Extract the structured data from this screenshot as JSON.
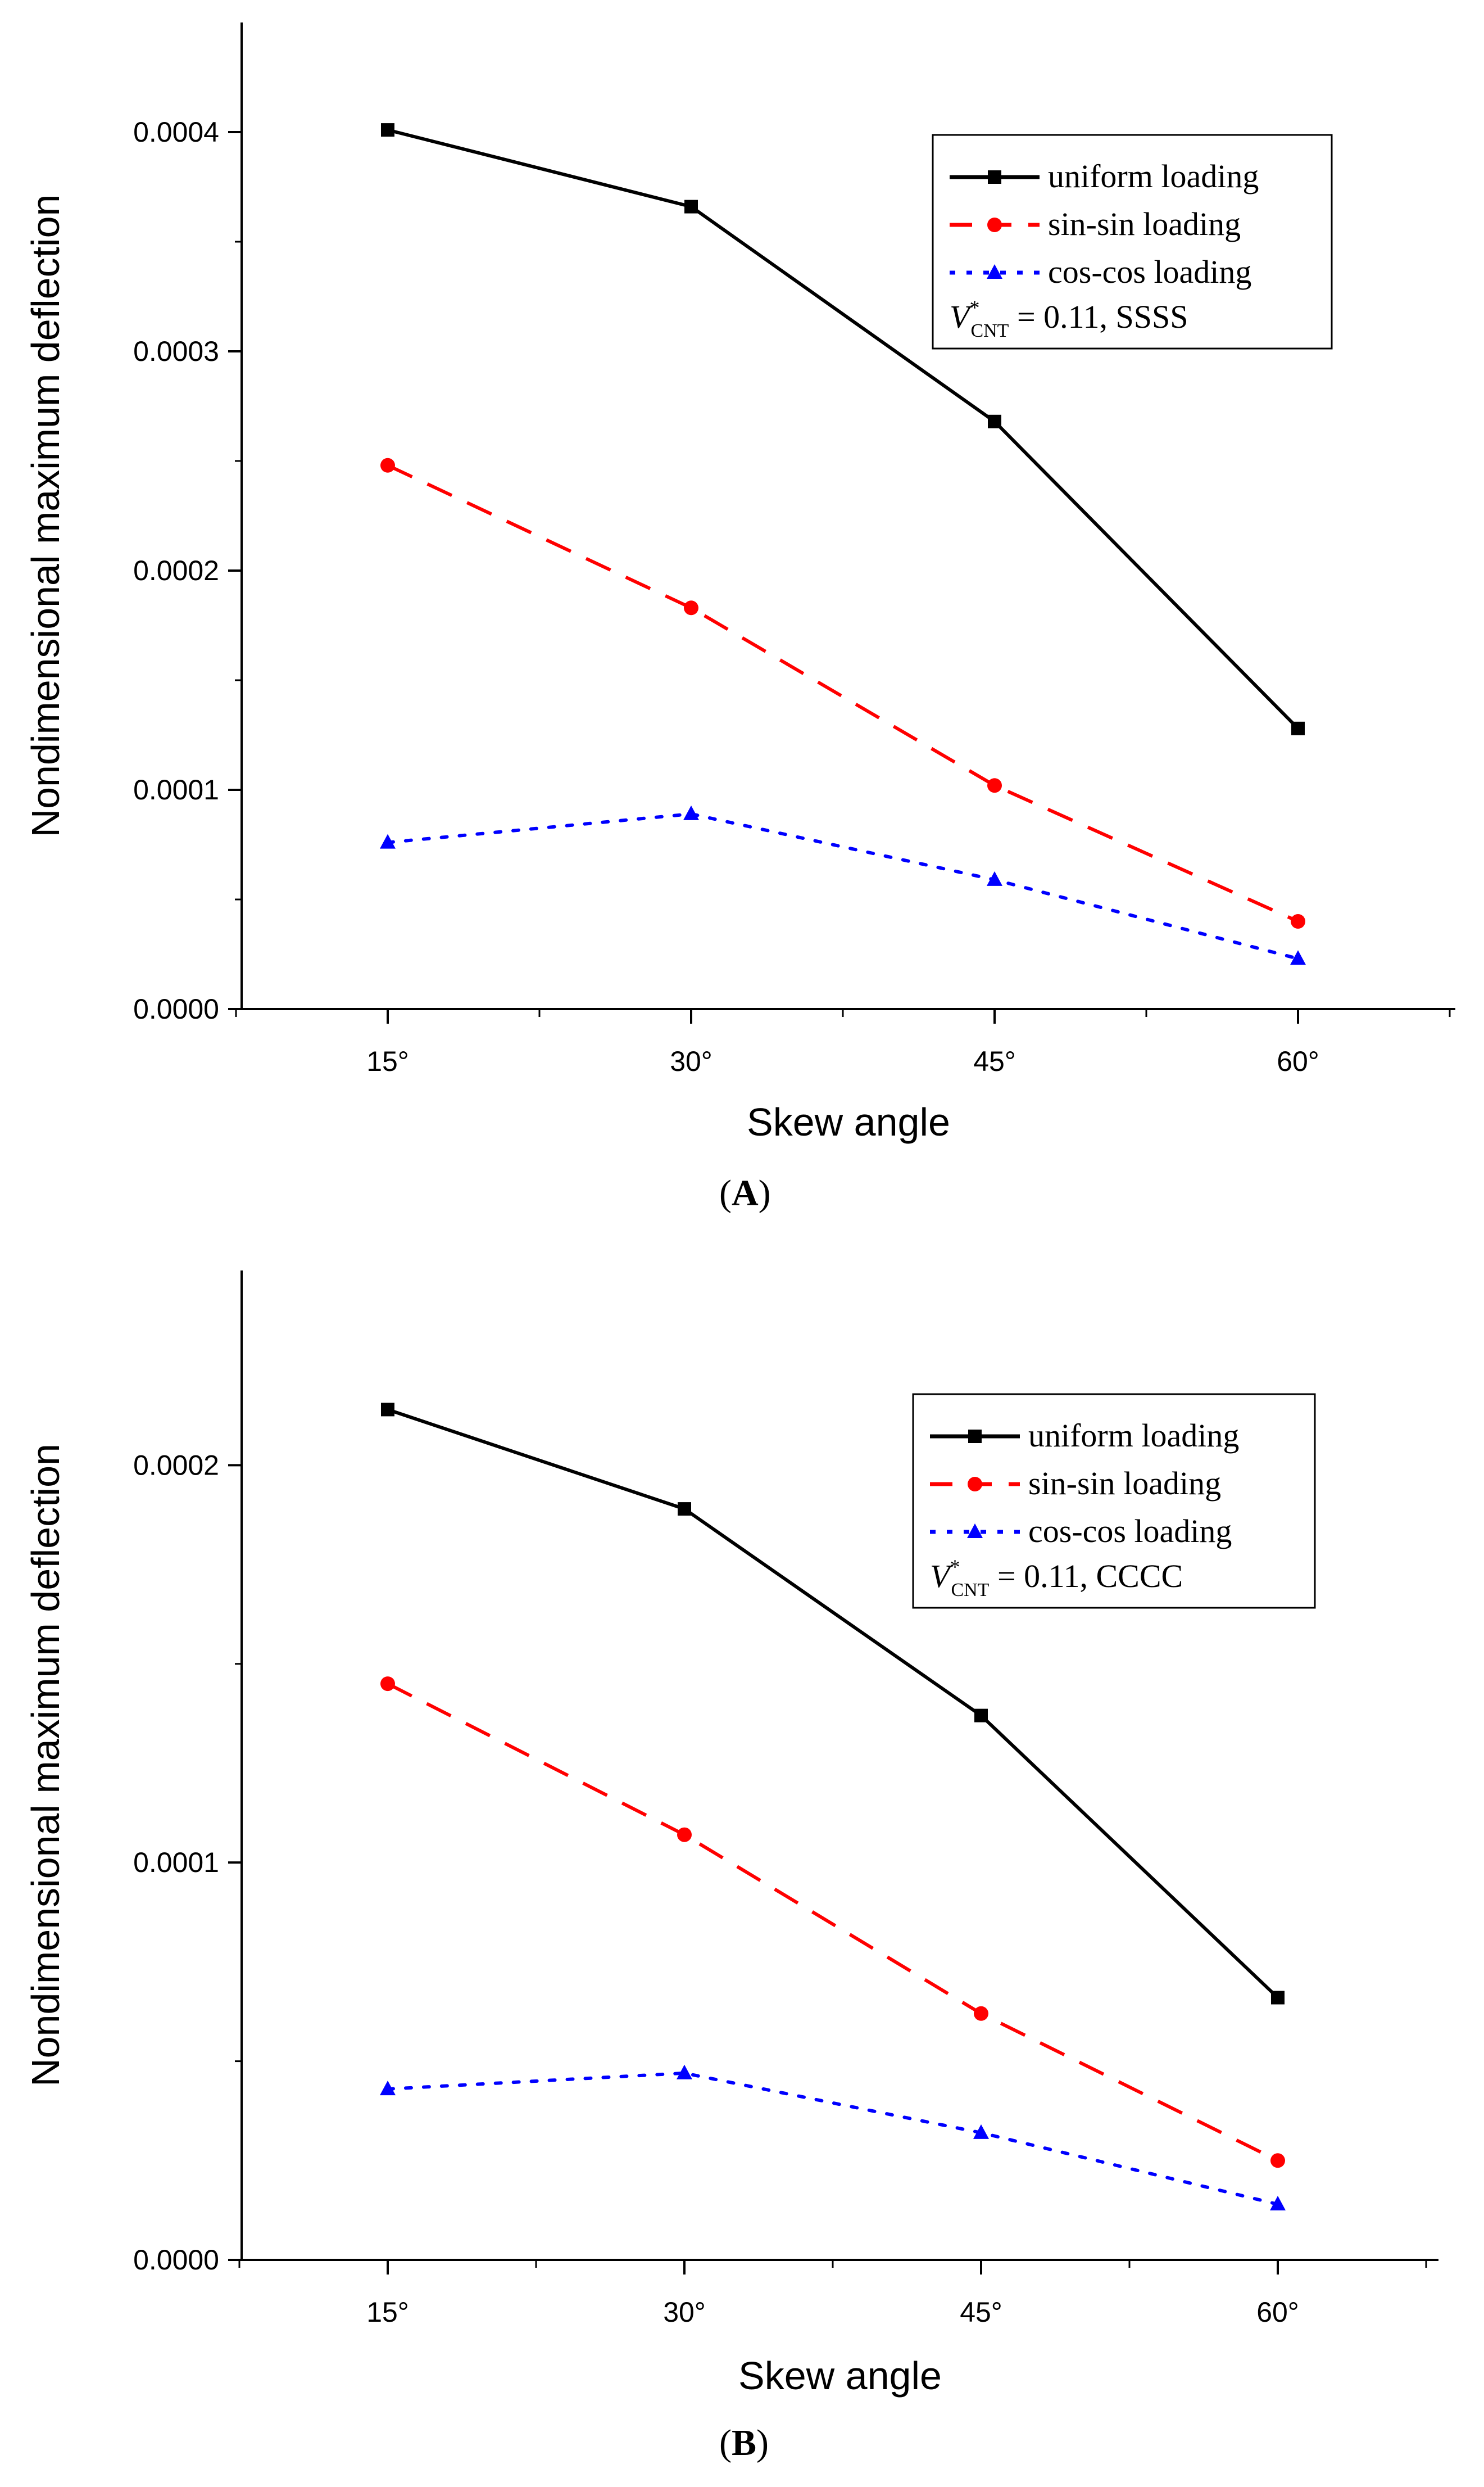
{
  "chart_data": [
    {
      "type": "line",
      "caption_letter": "A",
      "xlabel": "Skew angle",
      "ylabel": "Nondimensional maximum deflection",
      "categories": [
        "15°",
        "30°",
        "45°",
        "60°"
      ],
      "ylim": [
        0,
        0.00045
      ],
      "yticks": [
        "0.0000",
        "0.0001",
        "0.0002",
        "0.0003",
        "0.0004"
      ],
      "ytick_values": [
        0,
        0.0001,
        0.0002,
        0.0003,
        0.0004
      ],
      "legend": {
        "position": "top-right",
        "note_sub": "CNT",
        "note_rest": " = 0.11, SSSS"
      },
      "series": [
        {
          "name": "uniform loading",
          "color": "#000000",
          "style": "solid",
          "marker": "square",
          "values": [
            0.000401,
            0.000366,
            0.000268,
            0.000128
          ]
        },
        {
          "name": "sin-sin loading",
          "color": "#ff0000",
          "style": "dashed",
          "marker": "circle",
          "values": [
            0.000248,
            0.000183,
            0.000102,
            4e-05
          ]
        },
        {
          "name": "cos-cos loading",
          "color": "#0000ff",
          "style": "dotted",
          "marker": "triangle",
          "values": [
            7.6e-05,
            8.9e-05,
            5.9e-05,
            2.3e-05
          ]
        }
      ]
    },
    {
      "type": "line",
      "caption_letter": "B",
      "xlabel": "Skew angle",
      "ylabel": "Nondimensional maximum deflection",
      "categories": [
        "15°",
        "30°",
        "45°",
        "60°"
      ],
      "ylim": [
        0,
        0.000249
      ],
      "yticks": [
        "0.0000",
        "0.0001",
        "0.0002"
      ],
      "ytick_values": [
        0,
        0.0001,
        0.0002
      ],
      "legend": {
        "position": "top-right",
        "note_sub": "CNT",
        "note_rest": " = 0.11, CCCC"
      },
      "series": [
        {
          "name": "uniform loading",
          "color": "#000000",
          "style": "solid",
          "marker": "square",
          "values": [
            0.000214,
            0.000189,
            0.000137,
            6.6e-05
          ]
        },
        {
          "name": "sin-sin loading",
          "color": "#ff0000",
          "style": "dashed",
          "marker": "circle",
          "values": [
            0.000145,
            0.000107,
            6.2e-05,
            2.5e-05
          ]
        },
        {
          "name": "cos-cos loading",
          "color": "#0000ff",
          "style": "dotted",
          "marker": "triangle",
          "values": [
            4.3e-05,
            4.7e-05,
            3.2e-05,
            1.4e-05
          ]
        }
      ]
    }
  ]
}
